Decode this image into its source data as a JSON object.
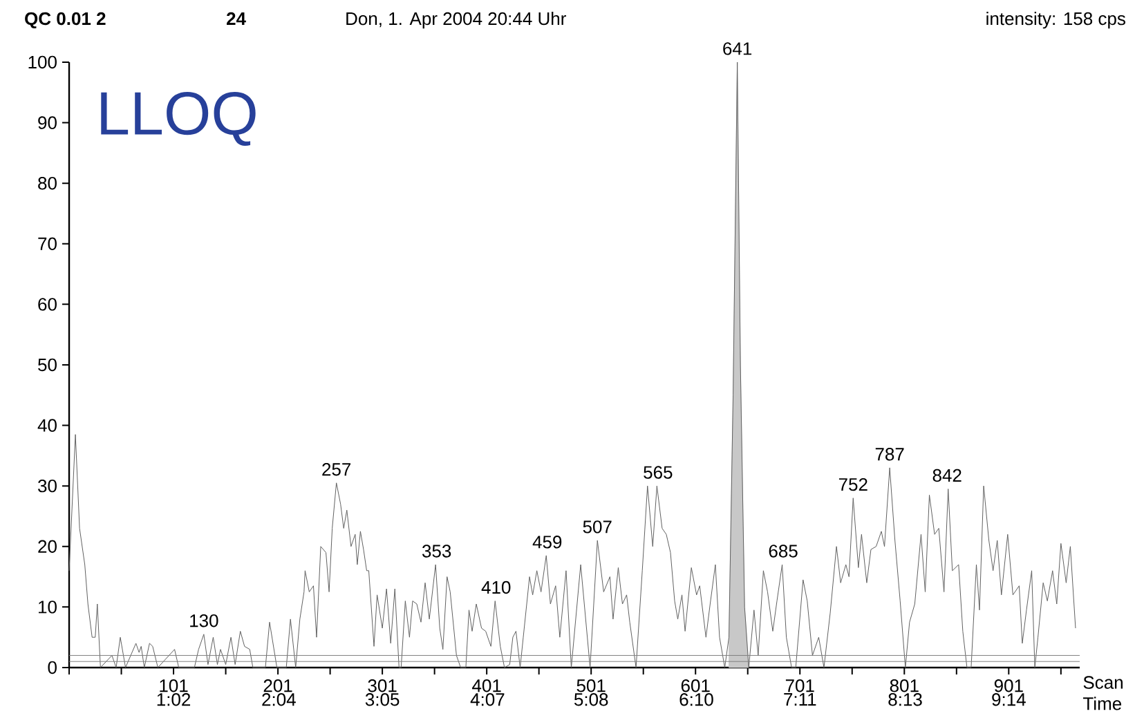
{
  "chart_data": {
    "type": "line",
    "title": "QC 0.01 2",
    "subtitle": "Don, 1. Apr 2004 20:44 Uhr",
    "xlabel": "Scan",
    "x2label": "Time",
    "x2lim": [
      0.0083,
      9.93
    ],
    "x2ticks": [
      {
        "value": 1.0333,
        "label": "1:02"
      },
      {
        "value": 2.0667,
        "label": "2:04"
      },
      {
        "value": 3.0833,
        "label": "3:05"
      },
      {
        "value": 4.1167,
        "label": "4:07"
      },
      {
        "value": 5.1333,
        "label": "5:08"
      },
      {
        "value": 6.1667,
        "label": "6:10"
      },
      {
        "value": 7.1833,
        "label": "7:11"
      },
      {
        "value": 8.2167,
        "label": "8:13"
      },
      {
        "value": 9.2333,
        "label": "9:14"
      }
    ],
    "xlim": [
      1,
      969
    ],
    "ylim": [
      0,
      100
    ],
    "xticks": [
      {
        "value": 1,
        "label": null
      },
      {
        "value": 51,
        "label": null
      },
      101,
      {
        "value": 151,
        "label": null
      },
      201,
      {
        "value": 251,
        "label": null
      },
      301,
      {
        "value": 351,
        "label": null
      },
      401,
      {
        "value": 451,
        "label": null
      },
      501,
      {
        "value": 551,
        "label": null
      },
      601,
      {
        "value": 651,
        "label": null
      },
      701,
      {
        "value": 751,
        "label": null
      },
      801,
      {
        "value": 851,
        "label": null
      },
      901,
      {
        "value": 951,
        "label": null
      }
    ],
    "yticks": [
      0,
      10,
      20,
      30,
      40,
      50,
      60,
      70,
      80,
      90,
      100
    ],
    "ref_lines": [
      {
        "axis": "y",
        "value": 1,
        "color": "#808080"
      },
      {
        "axis": "y",
        "value": 2,
        "color": "#808080"
      }
    ],
    "series": [
      {
        "type": "area",
        "color": "#c8c8c8",
        "x": [
          633,
          637,
          641,
          644,
          648,
          652
        ],
        "values": [
          5,
          45,
          100,
          50,
          10,
          0
        ]
      },
      {
        "color": "#606060",
        "x": [
          1,
          7,
          11,
          16,
          19,
          23,
          26,
          28,
          31,
          42,
          46,
          50,
          55,
          65,
          68,
          70,
          73,
          78,
          81,
          86,
          102,
          106,
          121,
          125,
          130,
          134,
          139,
          143,
          146,
          151,
          156,
          160,
          165,
          169,
          174,
          177,
          189,
          193,
          200,
          209,
          213,
          218,
          222,
          226,
          227,
          231,
          235,
          238,
          242,
          247,
          250,
          253,
          257,
          261,
          264,
          267,
          271,
          275,
          277,
          280,
          283,
          286,
          288,
          293,
          296,
          301,
          305,
          309,
          313,
          317,
          319,
          323,
          327,
          330,
          334,
          338,
          342,
          346,
          352,
          356,
          359,
          363,
          366,
          372,
          376,
          381,
          384,
          387,
          391,
          396,
          400,
          405,
          409,
          414,
          418,
          423,
          426,
          429,
          433,
          436,
          442,
          445,
          449,
          453,
          458,
          462,
          467,
          471,
          477,
          482,
          491,
          500,
          507,
          513,
          519,
          522,
          527,
          531,
          535,
          538,
          544,
          550,
          555,
          560,
          564,
          569,
          573,
          577,
          581,
          584,
          588,
          591,
          597,
          602,
          605,
          611,
          615,
          620,
          624,
          629,
          633,
          637,
          641,
          644,
          648,
          652,
          657,
          661,
          666,
          670,
          675,
          679,
          684,
          688,
          693,
          697,
          704,
          708,
          713,
          719,
          724,
          730,
          736,
          740,
          745,
          748,
          752,
          757,
          760,
          765,
          769,
          774,
          779,
          782,
          787,
          792,
          797,
          802,
          806,
          811,
          817,
          821,
          825,
          830,
          834,
          839,
          843,
          847,
          853,
          857,
          861,
          865,
          870,
          873,
          877,
          882,
          886,
          890,
          894,
          900,
          905,
          911,
          914,
          918,
          923,
          926,
          929,
          934,
          938,
          943,
          947,
          951,
          956,
          960,
          965
        ],
        "values": [
          16,
          38.5,
          23,
          17,
          10.5,
          5,
          5,
          10.5,
          0,
          2,
          0,
          5,
          0,
          4,
          2.5,
          3.5,
          0,
          4,
          3.5,
          0,
          3,
          0,
          0,
          3,
          5.5,
          0.5,
          5,
          0.5,
          3,
          0.5,
          5,
          0.5,
          6,
          3.5,
          3,
          0,
          0,
          7.5,
          0,
          0,
          8,
          0,
          8,
          12.5,
          16,
          12.5,
          13.5,
          5,
          20,
          19,
          12.5,
          23,
          30.5,
          27,
          23,
          26,
          20,
          22,
          17,
          22.5,
          19.5,
          16,
          16,
          3.5,
          12,
          6.5,
          13,
          4,
          13,
          0,
          0,
          11,
          5,
          11,
          10.5,
          7.5,
          14,
          8,
          17,
          6.5,
          3,
          15,
          12.5,
          2,
          0,
          0,
          9.5,
          6,
          10.5,
          6.5,
          6,
          3.5,
          11,
          3.5,
          0,
          0.5,
          5,
          6,
          0,
          5,
          15,
          12,
          16,
          12.5,
          18.5,
          10.5,
          13.5,
          5,
          16,
          0,
          17,
          0,
          21,
          12.5,
          15,
          8,
          16.5,
          10.5,
          12,
          7.5,
          0,
          16,
          30,
          20,
          30,
          23,
          22,
          19,
          11,
          8,
          12,
          6,
          16.5,
          12,
          13.5,
          5,
          10.5,
          17,
          5,
          0,
          5,
          45,
          100,
          50,
          10,
          0,
          9.5,
          2,
          16,
          12.5,
          6,
          11,
          17,
          5,
          0,
          0,
          14.5,
          11,
          2,
          5,
          0,
          9,
          20,
          14,
          17,
          15,
          28,
          16.5,
          22,
          14,
          19.5,
          20,
          22.5,
          20,
          33,
          21,
          11,
          0,
          7.5,
          10.5,
          22,
          12.5,
          28.5,
          22,
          23,
          12.5,
          29.5,
          16,
          17,
          6,
          0,
          0,
          17,
          9.5,
          30,
          21,
          16,
          21,
          12,
          22,
          12,
          13.5,
          4,
          9.5,
          16,
          0,
          5,
          14,
          11,
          16,
          10.5,
          20.5,
          14,
          20,
          6.5
        ]
      }
    ],
    "annotations": [
      "24",
      "intensity: 158 cps",
      "LLOQ",
      {
        "text": "130",
        "x": 130,
        "y": 5.5
      },
      {
        "text": "257",
        "x": 257,
        "y": 30.5
      },
      {
        "text": "353",
        "x": 353,
        "y": 17
      },
      {
        "text": "410",
        "x": 410,
        "y": 11
      },
      {
        "text": "459",
        "x": 459,
        "y": 18.5
      },
      {
        "text": "507",
        "x": 507,
        "y": 21
      },
      {
        "text": "565",
        "x": 565,
        "y": 30
      },
      {
        "text": "641",
        "x": 641,
        "y": 100
      },
      {
        "text": "685",
        "x": 685,
        "y": 17
      },
      {
        "text": "752",
        "x": 752,
        "y": 28
      },
      {
        "text": "787",
        "x": 787,
        "y": 33
      },
      {
        "text": "842",
        "x": 842,
        "y": 29.5
      }
    ]
  }
}
